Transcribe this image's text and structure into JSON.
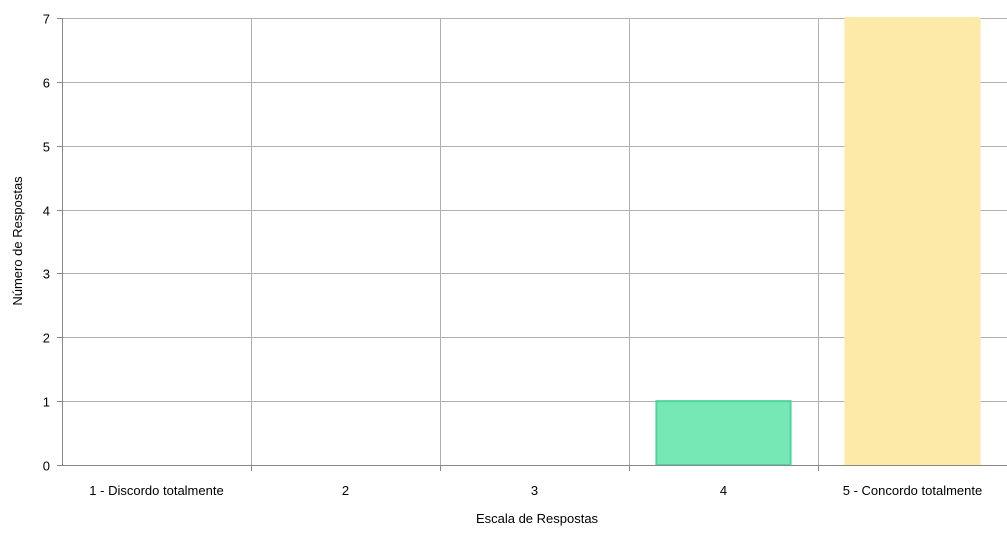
{
  "chart_data": {
    "type": "bar",
    "title": "",
    "xlabel": "Escala de Respostas",
    "ylabel": "Número de Respostas",
    "categories": [
      "1 - Discordo totalmente",
      "2",
      "3",
      "4",
      "5 - Concordo totalmente"
    ],
    "values": [
      0,
      0,
      0,
      1,
      7
    ],
    "bar_colors": [
      "#75e8b6",
      "#75e8b6",
      "#75e8b6",
      "#75e8b6",
      "#fdeaa8"
    ],
    "bar_borders": [
      "#4fd49a",
      "#4fd49a",
      "#4fd49a",
      "#4fd49a",
      "#fdeaa8"
    ],
    "ylim": [
      0,
      7
    ],
    "yticks": [
      "0",
      "1",
      "2",
      "3",
      "4",
      "5",
      "6",
      "7"
    ],
    "grid": true,
    "grid_color": "#b0b0b0",
    "axis_color": "#888888"
  }
}
